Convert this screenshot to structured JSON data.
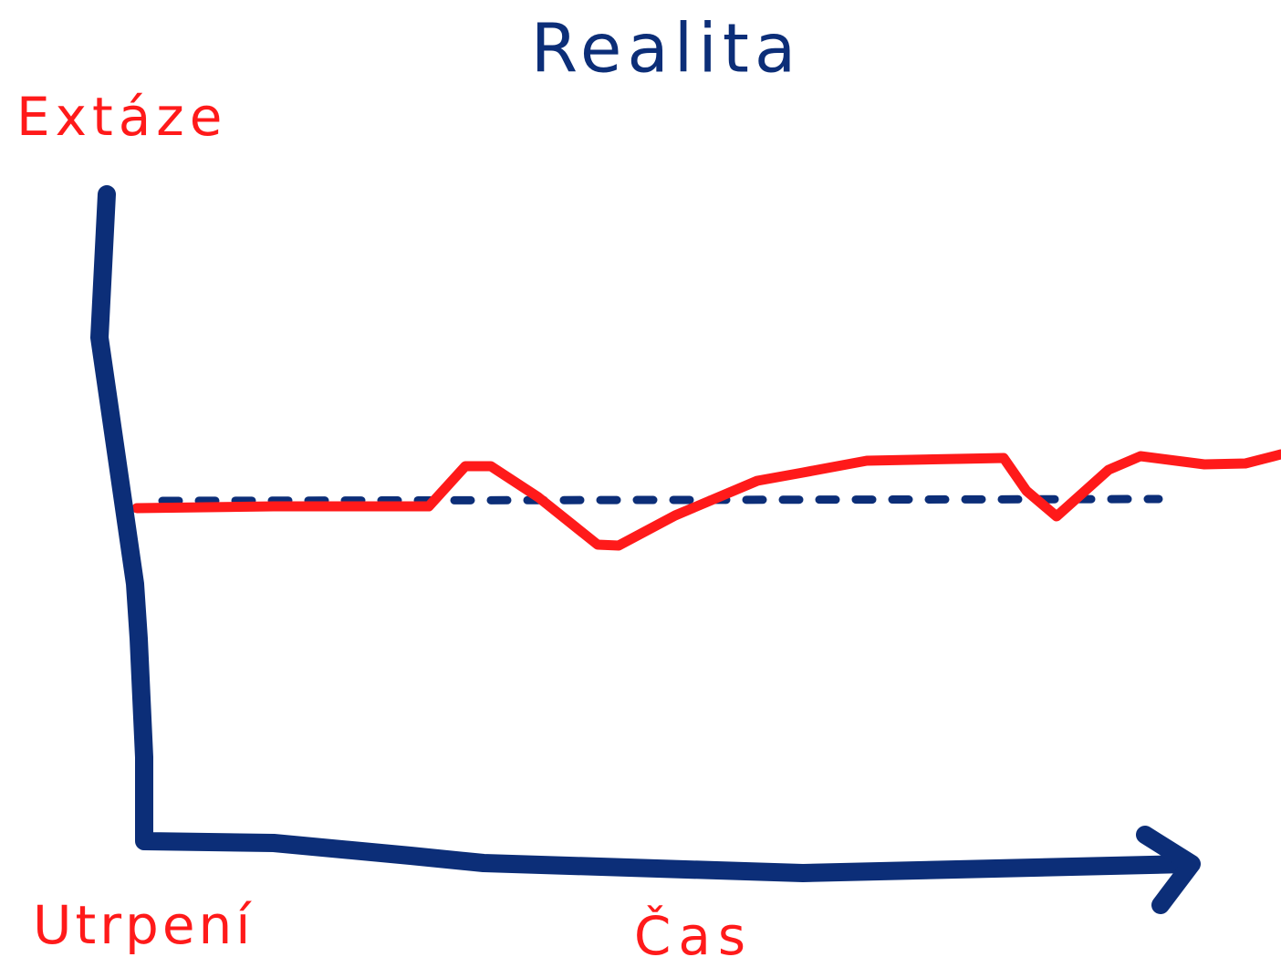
{
  "title": "Realita",
  "axis_labels": {
    "top": "Extáze",
    "bottom": "Utrpení",
    "x": "Čas"
  }
}
